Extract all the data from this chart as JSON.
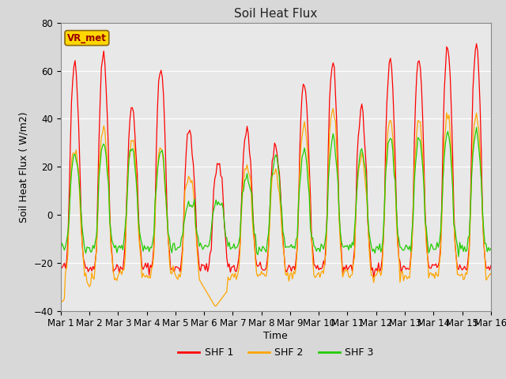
{
  "title": "Soil Heat Flux",
  "ylabel": "Soil Heat Flux ( W/m2)",
  "xlabel": "Time",
  "ylim": [
    -40,
    80
  ],
  "xlim": [
    0,
    360
  ],
  "fig_bg_color": "#d8d8d8",
  "plot_bg_color": "#e8e8e8",
  "legend_label": "VR_met",
  "series_labels": [
    "SHF 1",
    "SHF 2",
    "SHF 3"
  ],
  "series_colors": [
    "#ff0000",
    "#ffa500",
    "#22cc00"
  ],
  "tick_labels": [
    "Mar 1",
    "Mar 2",
    "Mar 3",
    "Mar 4",
    "Mar 5",
    "Mar 6",
    "Mar 7",
    "Mar 8",
    "Mar 9",
    "Mar 10",
    "Mar 11",
    "Mar 12",
    "Mar 13",
    "Mar 14",
    "Mar 15",
    "Mar 16"
  ],
  "tick_positions": [
    0,
    24,
    48,
    72,
    96,
    120,
    144,
    168,
    192,
    216,
    240,
    264,
    288,
    312,
    336,
    360
  ],
  "yticks": [
    -40,
    -20,
    0,
    20,
    40,
    60,
    80
  ],
  "n_hours": 384,
  "n_days": 16
}
